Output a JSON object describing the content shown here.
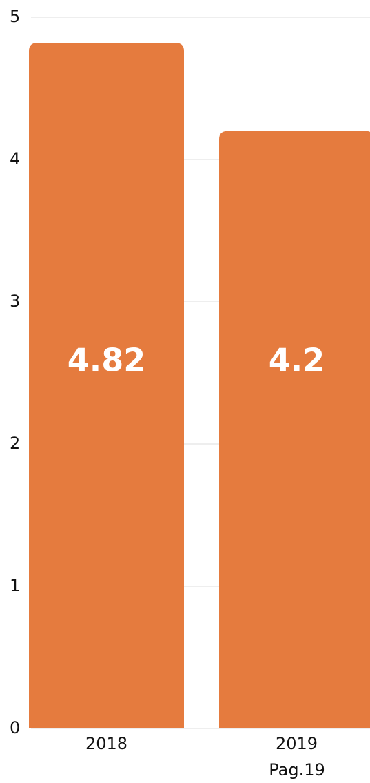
{
  "chart_data": {
    "type": "bar",
    "categories": [
      "2018",
      "2019"
    ],
    "values": [
      4.82,
      4.2
    ],
    "color": "#e57b3e",
    "ylim": [
      0,
      5
    ],
    "yticks": [
      0,
      1,
      2,
      3,
      4,
      5
    ],
    "grid": true,
    "annotation": "Pag.19"
  }
}
